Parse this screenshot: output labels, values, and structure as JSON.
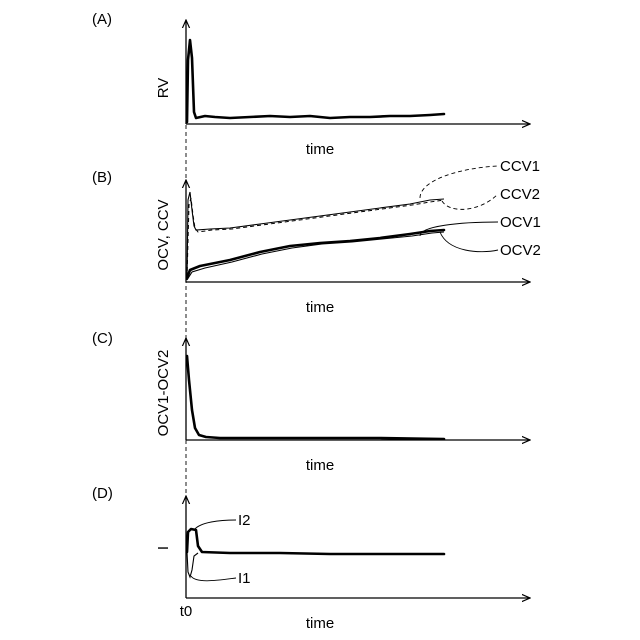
{
  "panels": {
    "a": {
      "label": "(A)",
      "ylabel": "RV",
      "xlabel": "time"
    },
    "b": {
      "label": "(B)",
      "ylabel": "OCV, CCV",
      "xlabel": "time",
      "series": {
        "ccv1": "CCV1",
        "ccv2": "CCV2",
        "ocv1": "OCV1",
        "ocv2": "OCV2"
      }
    },
    "c": {
      "label": "(C)",
      "ylabel": "OCV1-OCV2",
      "xlabel": "time"
    },
    "d": {
      "label": "(D)",
      "ylabel": "I",
      "xlabel": "time",
      "series": {
        "i2": "I2",
        "i1": "I1"
      },
      "t0": "t0"
    }
  }
}
